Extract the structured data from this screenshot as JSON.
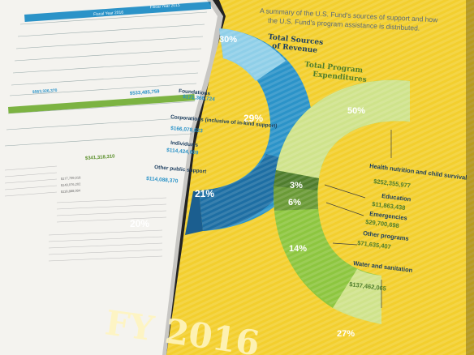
{
  "left_page": {
    "headers": [
      "Fiscal Year 2016",
      "Fiscal Year 2015"
    ],
    "totals": [
      "$563,326,370",
      "$533,485,759"
    ],
    "subtotal": "$341,318,310",
    "lower_values": [
      "$177,799,018",
      "$149,076,202",
      "$118,888,084"
    ]
  },
  "right_page": {
    "summary_line1": "A summary of the U.S. Fund's sources of support and how",
    "summary_line2": "the U.S. Fund's program assistance is distributed.",
    "year_label": "FY 2016",
    "revenue": {
      "title_line1": "Total Sources",
      "title_line2": "of Revenue",
      "percents": [
        "30%",
        "29%",
        "21%",
        "20%"
      ],
      "items": [
        {
          "label": "Foundations",
          "value": "$171,366,724"
        },
        {
          "label": "Corporations (inclusive of in-kind support)",
          "value": "$166,078,623"
        },
        {
          "label": "Individuals",
          "value": "$114,424,609"
        },
        {
          "label": "Other public support",
          "value": "$114,088,370"
        }
      ]
    },
    "program": {
      "title_line1": "Total Program",
      "title_line2": "Expenditures",
      "percents": [
        "50%",
        "3%",
        "6%",
        "14%",
        "27%"
      ],
      "items": [
        {
          "label": "Health nutrition and child survival",
          "value": "$252,355,977"
        },
        {
          "label": "Education",
          "value": "$11,863,438"
        },
        {
          "label": "Emergencies",
          "value": "$29,700,698"
        },
        {
          "label": "Other programs",
          "value": "$71,635,407"
        },
        {
          "label": "Water and sanitation",
          "value": "$137,462,065"
        }
      ]
    }
  },
  "colors": {
    "page_yellow": "#f3cf2e",
    "revenue_blue": "#2b93c8",
    "revenue_dark": "#1b5e8f",
    "program_green": "#8dc63f",
    "program_light": "#cfe38b",
    "program_dark": "#4f7d2c"
  }
}
